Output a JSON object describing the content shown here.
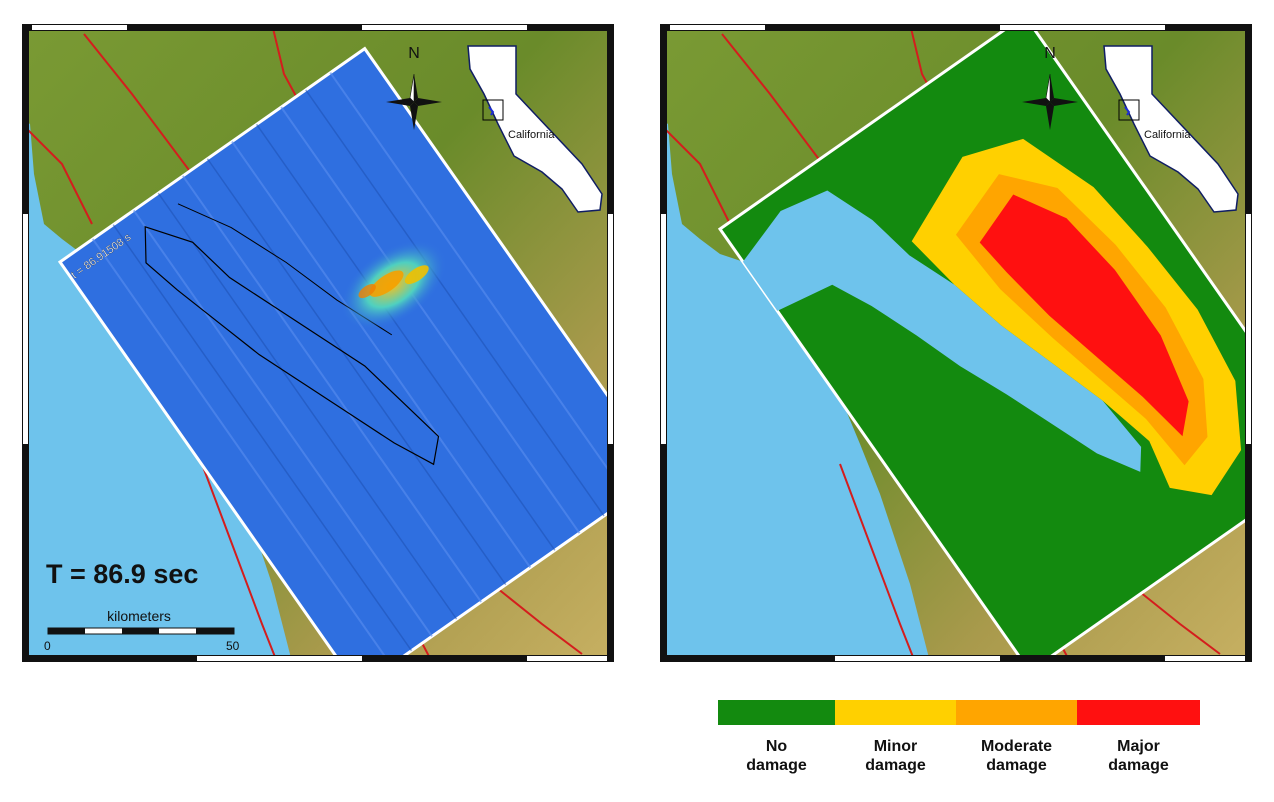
{
  "left_map": {
    "time_label": "T = 86.9 sec",
    "time_stamp": "t = 86.91508 s",
    "north_label": "N",
    "inset_label": "California",
    "scale": {
      "title": "kilometers",
      "min": "0",
      "max": "50"
    }
  },
  "right_map": {
    "north_label": "N",
    "inset_label": "California"
  },
  "legend": {
    "items": [
      {
        "label": "No\ndamage",
        "color": "#138a0f"
      },
      {
        "label": "Minor\ndamage",
        "color": "#ffd000"
      },
      {
        "label": "Moderate\ndamage",
        "color": "#ffa500"
      },
      {
        "label": "Major\ndamage",
        "color": "#ff1010"
      }
    ]
  },
  "colors": {
    "ocean": "#6ec3ec",
    "terrain_green": "#6d8f2c",
    "terrain_tan": "#c2a85b",
    "fault": "#d41d1d",
    "wave_blue": "#2f6fe0"
  }
}
